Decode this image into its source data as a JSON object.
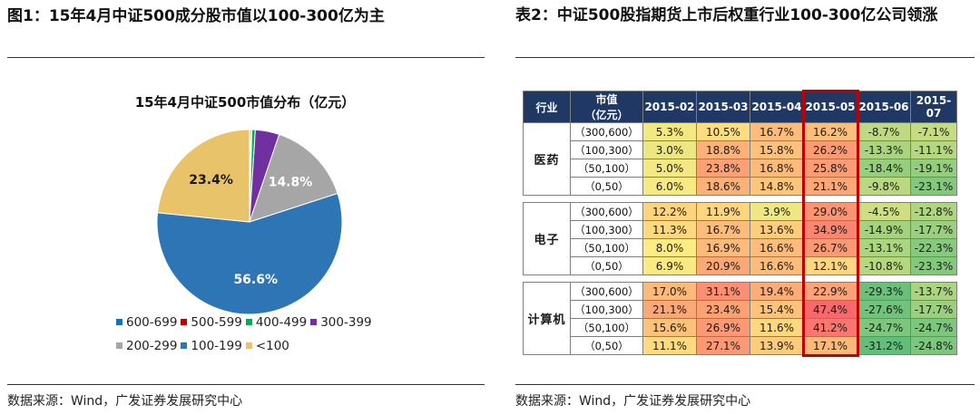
{
  "left_panel": {
    "title": "图1：15年4月中证500成分股市值以100-300亿为主",
    "source": "数据来源：Wind，广发证券发展研究中心"
  },
  "right_panel": {
    "title": "表2：中证500股指期货上市后权重行业100-300亿公司领涨",
    "source": "数据来源：Wind，广发证券发展研究中心"
  },
  "chart_data": [
    {
      "type": "pie",
      "title": "15年4月中证500市值分布（亿元）",
      "slices": [
        {
          "label": "600-699",
          "value": 0.2,
          "color": "#1f6fb2",
          "data_label": ""
        },
        {
          "label": "500-599",
          "value": 0.2,
          "color": "#c00000",
          "data_label": ""
        },
        {
          "label": "400-499",
          "value": 0.6,
          "color": "#00b050",
          "data_label": ""
        },
        {
          "label": "300-399",
          "value": 4.2,
          "color": "#7030a0",
          "data_label": ""
        },
        {
          "label": "200-299",
          "value": 14.8,
          "color": "#a6a6a6",
          "data_label": "14.8%"
        },
        {
          "label": "100-199",
          "value": 56.6,
          "color": "#2e75b6",
          "data_label": "56.6%"
        },
        {
          "label": "<100",
          "value": 23.4,
          "color": "#e8c36a",
          "data_label": "23.4%"
        }
      ],
      "legend_placement": "bottom"
    },
    {
      "type": "table",
      "columns": [
        "行业",
        "市值（亿元）",
        "2015-02",
        "2015-03",
        "2015-04",
        "2015-05",
        "2015-06",
        "2015-07"
      ],
      "highlight_column": "2015-05",
      "groups": [
        {
          "industry": "医药",
          "rows": [
            {
              "range": "（300,600）",
              "values": [
                "5.3%",
                "10.5%",
                "16.7%",
                "16.2%",
                "-8.7%",
                "-7.1%"
              ]
            },
            {
              "range": "（100,300）",
              "values": [
                "3.0%",
                "18.8%",
                "15.8%",
                "26.2%",
                "-13.3%",
                "-11.1%"
              ]
            },
            {
              "range": "（50,100）",
              "values": [
                "5.0%",
                "23.8%",
                "16.8%",
                "25.8%",
                "-18.4%",
                "-19.1%"
              ]
            },
            {
              "range": "（0,50）",
              "values": [
                "6.0%",
                "18.6%",
                "14.8%",
                "21.1%",
                "-9.8%",
                "-23.1%"
              ]
            }
          ]
        },
        {
          "industry": "电子",
          "rows": [
            {
              "range": "（300,600）",
              "values": [
                "12.2%",
                "11.9%",
                "3.9%",
                "29.0%",
                "-4.5%",
                "-12.8%"
              ]
            },
            {
              "range": "（100,300）",
              "values": [
                "11.3%",
                "16.7%",
                "13.6%",
                "34.9%",
                "-14.9%",
                "-17.7%"
              ]
            },
            {
              "range": "（50,100）",
              "values": [
                "8.0%",
                "16.9%",
                "16.6%",
                "26.7%",
                "-13.1%",
                "-22.3%"
              ]
            },
            {
              "range": "（0,50）",
              "values": [
                "6.9%",
                "20.9%",
                "16.6%",
                "12.1%",
                "-10.8%",
                "-23.3%"
              ]
            }
          ]
        },
        {
          "industry": "计算机",
          "rows": [
            {
              "range": "（300,600）",
              "values": [
                "17.0%",
                "31.1%",
                "19.4%",
                "22.9%",
                "-29.3%",
                "-13.7%"
              ]
            },
            {
              "range": "（100,300）",
              "values": [
                "21.1%",
                "23.4%",
                "15.4%",
                "47.4%",
                "-27.6%",
                "-17.7%"
              ]
            },
            {
              "range": "（50,100）",
              "values": [
                "15.6%",
                "26.9%",
                "11.6%",
                "41.2%",
                "-24.7%",
                "-24.7%"
              ]
            },
            {
              "range": "（0,50）",
              "values": [
                "11.1%",
                "27.1%",
                "13.9%",
                "17.1%",
                "-31.2%",
                "-24.8%"
              ]
            }
          ]
        }
      ]
    }
  ]
}
